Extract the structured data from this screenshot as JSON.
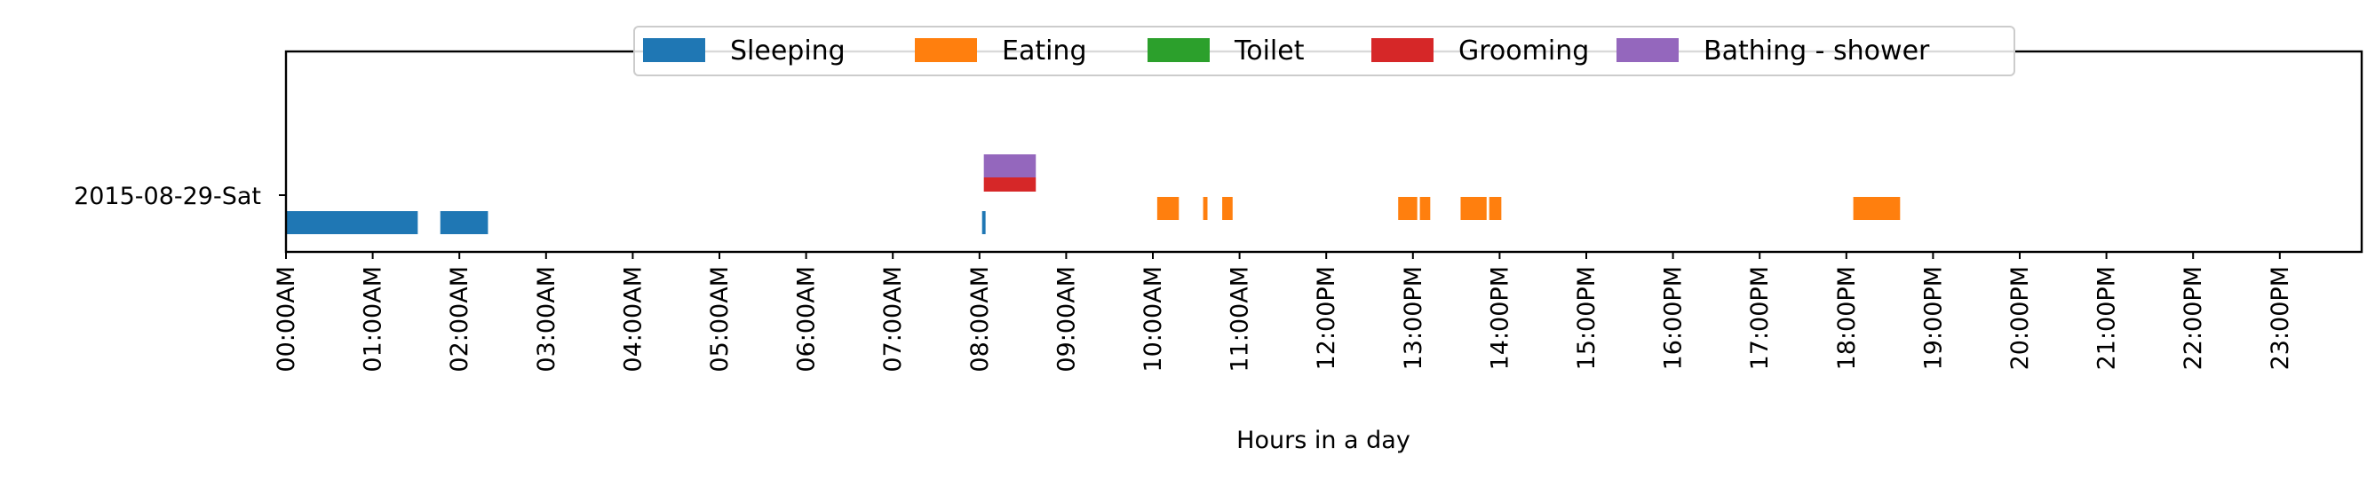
{
  "chart_data": {
    "type": "timeline",
    "title": "",
    "xlabel": "Hours in a day",
    "ylabel": "",
    "xlim_hours": [
      0,
      24
    ],
    "y_category": "2015-08-29-Sat",
    "xticks": [
      "00:00AM",
      "01:00AM",
      "02:00AM",
      "03:00AM",
      "04:00AM",
      "05:00AM",
      "06:00AM",
      "07:00AM",
      "08:00AM",
      "09:00AM",
      "10:00AM",
      "11:00AM",
      "12:00PM",
      "13:00PM",
      "14:00PM",
      "15:00PM",
      "16:00PM",
      "17:00PM",
      "18:00PM",
      "19:00PM",
      "20:00PM",
      "21:00PM",
      "22:00PM",
      "23:00PM"
    ],
    "legend_position": "top-center",
    "grid": false,
    "series": [
      {
        "name": "Sleeping",
        "color": "#1f77b4",
        "intervals": [
          [
            0.0,
            1.52
          ],
          [
            1.78,
            2.33
          ],
          [
            8.03,
            8.07
          ]
        ]
      },
      {
        "name": "Eating",
        "color": "#ff7f0e",
        "intervals": [
          [
            10.05,
            10.3
          ],
          [
            10.58,
            10.63
          ],
          [
            10.8,
            10.92
          ],
          [
            12.83,
            13.05
          ],
          [
            13.08,
            13.2
          ],
          [
            13.55,
            13.85
          ],
          [
            13.88,
            14.02
          ],
          [
            18.08,
            18.62
          ]
        ]
      },
      {
        "name": "Toilet",
        "color": "#2ca02c",
        "intervals": []
      },
      {
        "name": "Grooming",
        "color": "#d62728",
        "intervals": [
          [
            8.05,
            8.65
          ]
        ]
      },
      {
        "name": "Bathing - shower",
        "color": "#9467bd",
        "intervals": [
          [
            8.05,
            8.65
          ]
        ]
      }
    ]
  }
}
